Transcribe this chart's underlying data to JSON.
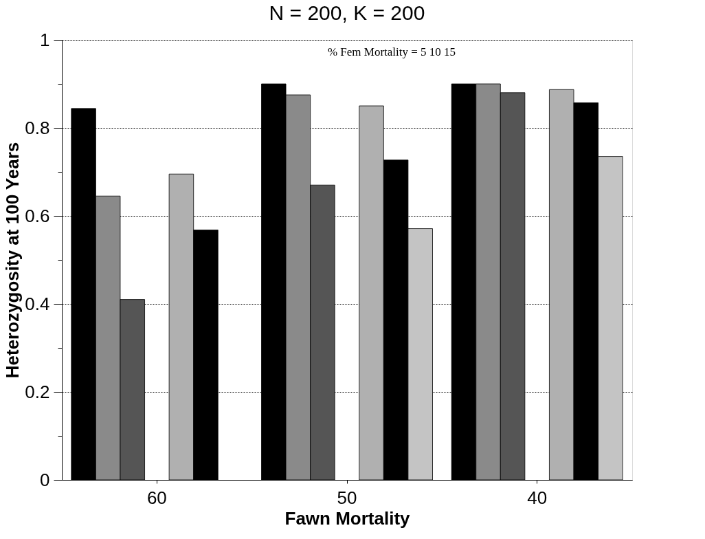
{
  "chart_data": {
    "type": "bar",
    "title": "N = 200,  K = 200",
    "xlabel": "Fawn  Mortality",
    "ylabel": "Heterozygosity at 100 Years",
    "categories": [
      "60",
      "50",
      "40"
    ],
    "series": [
      {
        "color": "#000000",
        "values": [
          0.844,
          0.9,
          0.9
        ]
      },
      {
        "color": "#8a8a8a",
        "values": [
          0.645,
          0.875,
          0.9
        ]
      },
      {
        "color": "#555555",
        "values": [
          0.41,
          0.67,
          0.88
        ]
      },
      {
        "color": "#b0b0b0",
        "values": [
          0.695,
          0.85,
          0.887
        ]
      },
      {
        "color": "#000000",
        "values": [
          0.568,
          0.727,
          0.857
        ]
      },
      {
        "color": "#c4c4c4",
        "values": [
          null,
          0.571,
          0.735
        ]
      }
    ],
    "ylim": [
      0,
      1
    ],
    "yticks": [
      0,
      {
        "value": 0.1,
        "label": null
      },
      0.2,
      {
        "value": 0.3,
        "label": null
      },
      0.4,
      {
        "value": 0.5,
        "label": null
      },
      0.6,
      {
        "value": 0.7,
        "label": null
      },
      0.8,
      {
        "value": 0.9,
        "label": null
      },
      1
    ],
    "grid": "y",
    "legend": false,
    "annotations": [
      "% Fem Mortality =     5   10   15"
    ]
  }
}
